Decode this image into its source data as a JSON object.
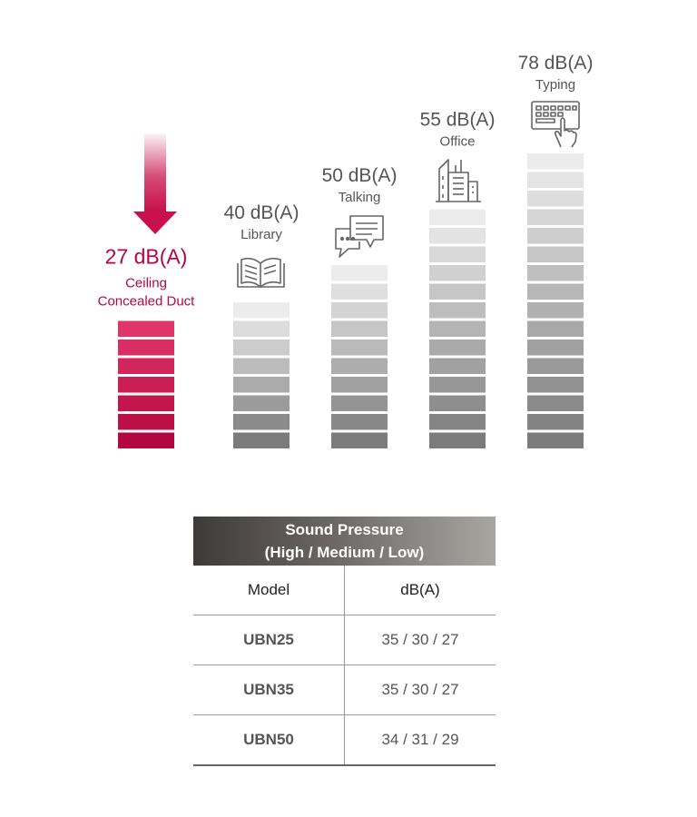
{
  "chart_data": {
    "type": "bar",
    "unit": "dB(A)",
    "categories": [
      {
        "value_label": "27 dB(A)",
        "name_lines": [
          "Ceiling",
          "Concealed Duct"
        ],
        "icon": "arrow-down-icon",
        "highlight": true
      },
      {
        "value_label": "40 dB(A)",
        "name_lines": [
          "Library"
        ],
        "icon": "book-icon",
        "highlight": false
      },
      {
        "value_label": "50 dB(A)",
        "name_lines": [
          "Talking"
        ],
        "icon": "speech-bubbles-icon",
        "highlight": false
      },
      {
        "value_label": "55 dB(A)",
        "name_lines": [
          "Office"
        ],
        "icon": "office-building-icon",
        "highlight": false
      },
      {
        "value_label": "78 dB(A)",
        "name_lines": [
          "Typing"
        ],
        "icon": "keyboard-typing-icon",
        "highlight": false
      }
    ],
    "values": [
      27,
      40,
      50,
      55,
      78
    ],
    "segments": [
      7,
      8,
      10,
      13,
      16
    ],
    "colors": {
      "highlight": "#b3083f",
      "highlight_light": "#e0356a",
      "gray_dark": "#7b7b7b",
      "gray_light": "#ececec"
    }
  },
  "table": {
    "header_line1": "Sound Pressure",
    "header_line2": "(High / Medium / Low)",
    "col_model": "Model",
    "col_value": "dB(A)",
    "rows": [
      {
        "model": "UBN25",
        "value": "35 / 30 / 27"
      },
      {
        "model": "UBN35",
        "value": "35 / 30 / 27"
      },
      {
        "model": "UBN50",
        "value": "34 / 31 / 29"
      }
    ]
  }
}
